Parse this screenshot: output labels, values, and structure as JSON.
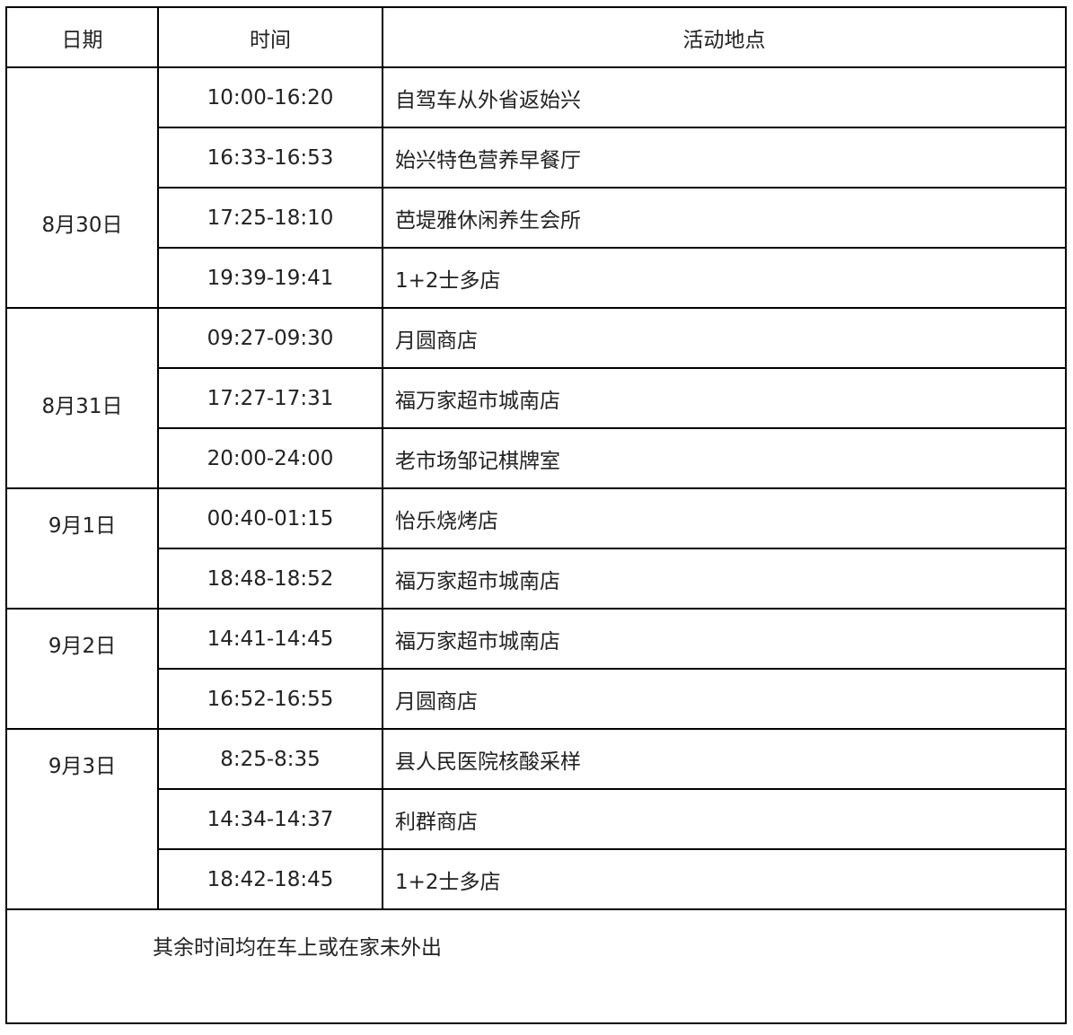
{
  "headers": {
    "date": "日期",
    "time": "时间",
    "place": "活动地点"
  },
  "groups": [
    {
      "date": "8月30日",
      "entries": [
        {
          "time": "10:00-16:20",
          "place": "自驾车从外省返始兴"
        },
        {
          "time": "16:33-16:53",
          "place": "始兴特色营养早餐厅"
        },
        {
          "time": "17:25-18:10",
          "place": "芭堤雅休闲养生会所"
        },
        {
          "time": "19:39-19:41",
          "place": "1+2士多店"
        }
      ]
    },
    {
      "date": "8月31日",
      "entries": [
        {
          "time": "09:27-09:30",
          "place": "月圆商店"
        },
        {
          "time": "17:27-17:31",
          "place": "福万家超市城南店"
        },
        {
          "time": "20:00-24:00",
          "place": "老市场邹记棋牌室"
        }
      ]
    },
    {
      "date": "9月1日",
      "entries": [
        {
          "time": "00:40-01:15",
          "place": "怡乐烧烤店"
        },
        {
          "time": "18:48-18:52",
          "place": "福万家超市城南店"
        }
      ]
    },
    {
      "date": "9月2日",
      "entries": [
        {
          "time": "14:41-14:45",
          "place": "福万家超市城南店"
        },
        {
          "time": "16:52-16:55",
          "place": "月圆商店"
        }
      ]
    },
    {
      "date": "9月3日",
      "entries": [
        {
          "time": "8:25-8:35",
          "place": "县人民医院核酸采样"
        },
        {
          "time": "14:34-14:37",
          "place": "利群商店"
        },
        {
          "time": "18:42-18:45",
          "place": "1+2士多店"
        }
      ]
    }
  ],
  "footer_note": "其余时间均在车上或在家未外出"
}
